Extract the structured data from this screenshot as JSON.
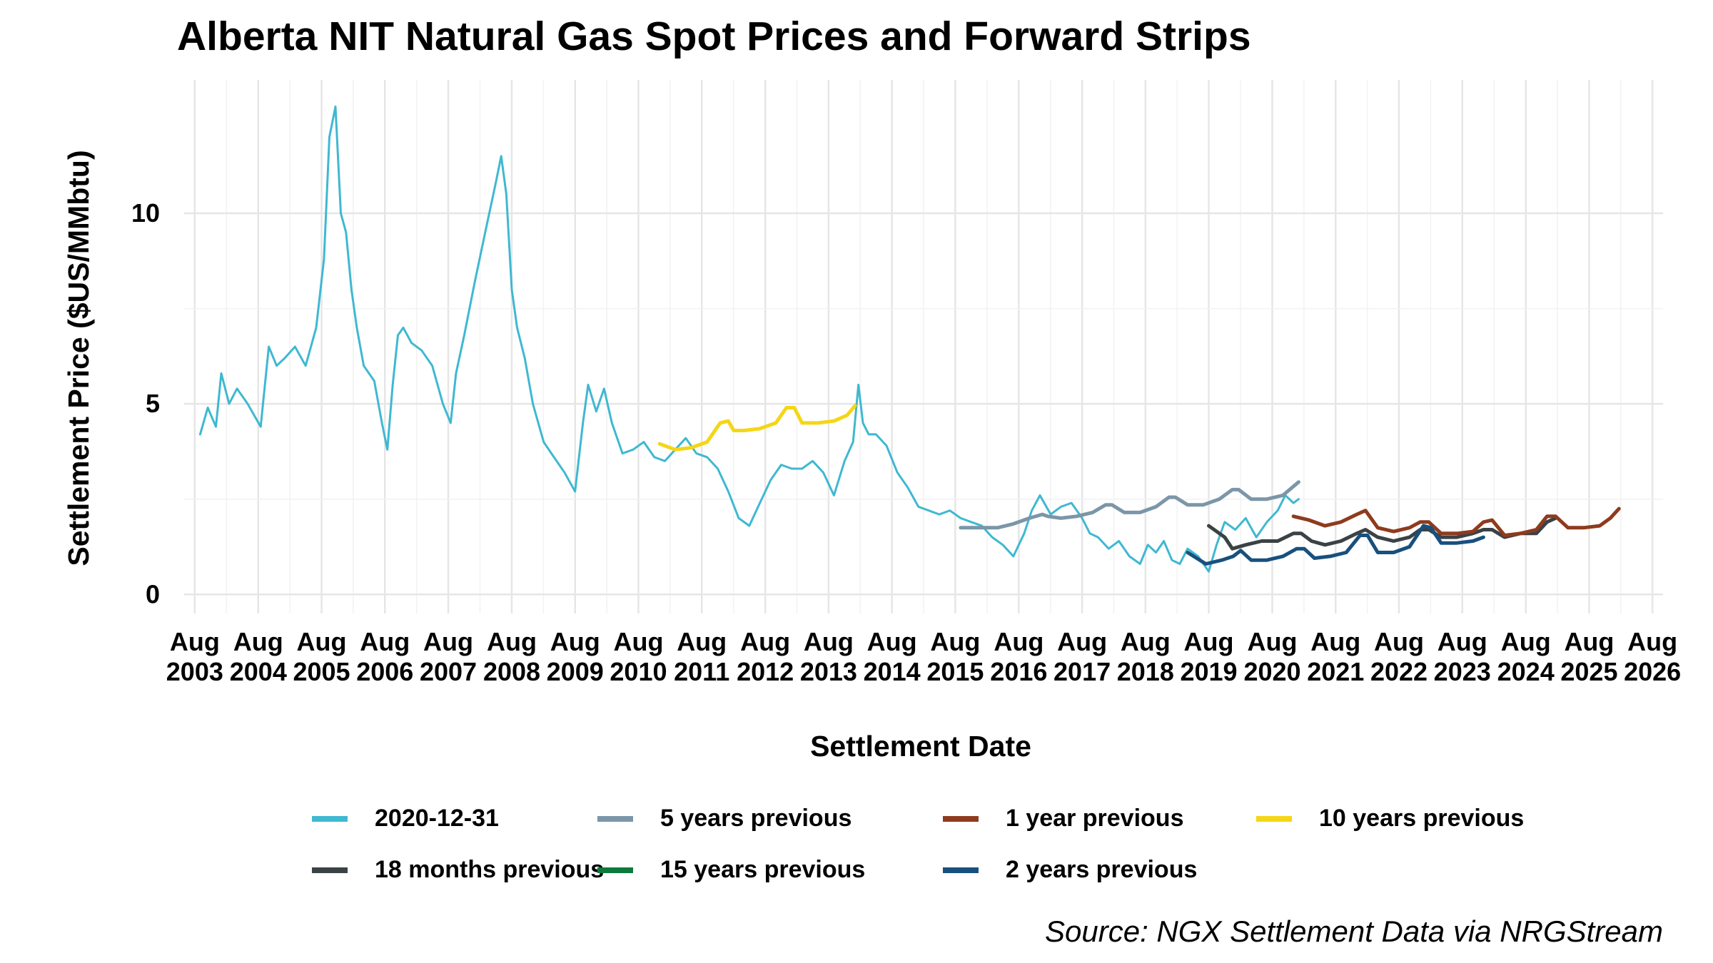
{
  "chart_data": {
    "type": "line",
    "title": "Alberta NIT Natural Gas Spot Prices and Forward Strips",
    "xlabel": "Settlement Date",
    "ylabel": "Settlement Price ($US/MMbtu)",
    "source": "Source: NGX Settlement Data via NRGStream",
    "xlim": [
      "2003-06-01",
      "2026-10-01"
    ],
    "ylim": [
      -0.5,
      13.5
    ],
    "grid": true,
    "legend_position": "bottom",
    "x_ticks": [
      {
        "date": "2003-08-01",
        "label": [
          "Aug",
          "2003"
        ]
      },
      {
        "date": "2004-08-01",
        "label": [
          "Aug",
          "2004"
        ]
      },
      {
        "date": "2005-08-01",
        "label": [
          "Aug",
          "2005"
        ]
      },
      {
        "date": "2006-08-01",
        "label": [
          "Aug",
          "2006"
        ]
      },
      {
        "date": "2007-08-01",
        "label": [
          "Aug",
          "2007"
        ]
      },
      {
        "date": "2008-08-01",
        "label": [
          "Aug",
          "2008"
        ]
      },
      {
        "date": "2009-08-01",
        "label": [
          "Aug",
          "2009"
        ]
      },
      {
        "date": "2010-08-01",
        "label": [
          "Aug",
          "2010"
        ]
      },
      {
        "date": "2011-08-01",
        "label": [
          "Aug",
          "2011"
        ]
      },
      {
        "date": "2012-08-01",
        "label": [
          "Aug",
          "2012"
        ]
      },
      {
        "date": "2013-08-01",
        "label": [
          "Aug",
          "2013"
        ]
      },
      {
        "date": "2014-08-01",
        "label": [
          "Aug",
          "2014"
        ]
      },
      {
        "date": "2015-08-01",
        "label": [
          "Aug",
          "2015"
        ]
      },
      {
        "date": "2016-08-01",
        "label": [
          "Aug",
          "2016"
        ]
      },
      {
        "date": "2017-08-01",
        "label": [
          "Aug",
          "2017"
        ]
      },
      {
        "date": "2018-08-01",
        "label": [
          "Aug",
          "2018"
        ]
      },
      {
        "date": "2019-08-01",
        "label": [
          "Aug",
          "2019"
        ]
      },
      {
        "date": "2020-08-01",
        "label": [
          "Aug",
          "2020"
        ]
      },
      {
        "date": "2021-08-01",
        "label": [
          "Aug",
          "2021"
        ]
      },
      {
        "date": "2022-08-01",
        "label": [
          "Aug",
          "2022"
        ]
      },
      {
        "date": "2023-08-01",
        "label": [
          "Aug",
          "2023"
        ]
      },
      {
        "date": "2024-08-01",
        "label": [
          "Aug",
          "2024"
        ]
      },
      {
        "date": "2025-08-01",
        "label": [
          "Aug",
          "2025"
        ]
      },
      {
        "date": "2026-08-01",
        "label": [
          "Aug",
          "2026"
        ]
      }
    ],
    "y_ticks": [
      0,
      5,
      10
    ],
    "series": [
      {
        "name": "2020-12-31",
        "color": "#3FB8D1",
        "width": 3,
        "x": [
          "2003-09-01",
          "2003-10-15",
          "2003-12-01",
          "2004-01-01",
          "2004-02-15",
          "2004-04-01",
          "2004-06-01",
          "2004-08-15",
          "2004-10-01",
          "2004-11-15",
          "2005-01-01",
          "2005-03-01",
          "2005-05-01",
          "2005-07-01",
          "2005-08-15",
          "2005-09-15",
          "2005-10-20",
          "2005-11-20",
          "2005-12-20",
          "2006-01-20",
          "2006-02-20",
          "2006-04-01",
          "2006-06-01",
          "2006-07-15",
          "2006-08-15",
          "2006-09-15",
          "2006-10-15",
          "2006-11-15",
          "2007-01-01",
          "2007-03-01",
          "2007-05-01",
          "2007-07-01",
          "2007-08-15",
          "2007-09-15",
          "2007-11-01",
          "2008-01-01",
          "2008-03-01",
          "2008-05-01",
          "2008-06-01",
          "2008-07-01",
          "2008-08-01",
          "2008-09-01",
          "2008-10-15",
          "2008-12-01",
          "2009-02-01",
          "2009-04-01",
          "2009-06-01",
          "2009-08-01",
          "2009-09-15",
          "2009-10-15",
          "2009-12-01",
          "2010-01-15",
          "2010-03-01",
          "2010-05-01",
          "2010-07-01",
          "2010-09-01",
          "2010-11-01",
          "2011-01-01",
          "2011-03-01",
          "2011-05-01",
          "2011-07-01",
          "2011-09-01",
          "2011-11-01",
          "2012-01-01",
          "2012-03-01",
          "2012-05-01",
          "2012-07-01",
          "2012-09-01",
          "2012-11-01",
          "2013-01-01",
          "2013-03-01",
          "2013-05-01",
          "2013-07-01",
          "2013-09-01",
          "2013-11-01",
          "2013-12-20",
          "2014-01-20",
          "2014-02-15",
          "2014-03-20",
          "2014-05-01",
          "2014-07-01",
          "2014-09-01",
          "2014-11-01",
          "2015-01-01",
          "2015-03-01",
          "2015-05-01",
          "2015-07-01",
          "2015-09-01",
          "2015-11-01",
          "2016-01-01",
          "2016-03-01",
          "2016-05-01",
          "2016-07-01",
          "2016-09-01",
          "2016-10-15",
          "2016-12-01",
          "2017-02-01",
          "2017-04-01",
          "2017-06-01",
          "2017-08-01",
          "2017-09-15",
          "2017-11-01",
          "2018-01-01",
          "2018-03-01",
          "2018-05-01",
          "2018-07-01",
          "2018-08-15",
          "2018-10-01",
          "2018-11-15",
          "2019-01-01",
          "2019-02-15",
          "2019-04-01",
          "2019-06-01",
          "2019-08-01",
          "2019-09-15",
          "2019-11-01",
          "2020-01-01",
          "2020-03-01",
          "2020-05-01",
          "2020-07-01",
          "2020-09-01",
          "2020-10-15",
          "2020-12-01",
          "2020-12-31"
        ],
        "y": [
          4.2,
          4.9,
          4.4,
          5.8,
          5.0,
          5.4,
          5.0,
          4.4,
          6.5,
          6.0,
          6.2,
          6.5,
          6.0,
          7.0,
          8.8,
          12.0,
          12.8,
          10.0,
          9.5,
          8.0,
          7.0,
          6.0,
          5.6,
          4.5,
          3.8,
          5.5,
          6.8,
          7.0,
          6.6,
          6.4,
          6.0,
          5.0,
          4.5,
          5.8,
          6.8,
          8.2,
          9.5,
          10.8,
          11.5,
          10.5,
          8.0,
          7.0,
          6.2,
          5.0,
          4.0,
          3.6,
          3.2,
          2.7,
          4.5,
          5.5,
          4.8,
          5.4,
          4.5,
          3.7,
          3.8,
          4.0,
          3.6,
          3.5,
          3.8,
          4.1,
          3.7,
          3.6,
          3.3,
          2.7,
          2.0,
          1.8,
          2.4,
          3.0,
          3.4,
          3.3,
          3.3,
          3.5,
          3.2,
          2.6,
          3.5,
          4.0,
          5.5,
          4.5,
          4.2,
          4.2,
          3.9,
          3.2,
          2.8,
          2.3,
          2.2,
          2.1,
          2.2,
          2.0,
          1.9,
          1.8,
          1.5,
          1.3,
          1.0,
          1.6,
          2.2,
          2.6,
          2.1,
          2.3,
          2.4,
          2.0,
          1.6,
          1.5,
          1.2,
          1.4,
          1.0,
          0.8,
          1.3,
          1.1,
          1.4,
          0.9,
          0.8,
          1.2,
          1.0,
          0.6,
          1.3,
          1.9,
          1.7,
          2.0,
          1.5,
          1.9,
          2.2,
          2.6,
          2.4,
          2.5
        ]
      },
      {
        "name": "18 months previous",
        "color": "#3A4245",
        "width": 5,
        "x": [
          "2019-08-01",
          "2019-11-01",
          "2019-12-15",
          "2020-03-01",
          "2020-06-01",
          "2020-09-01",
          "2020-12-01",
          "2021-01-15",
          "2021-03-15",
          "2021-06-01",
          "2021-09-01",
          "2021-12-01",
          "2022-01-20",
          "2022-04-01",
          "2022-07-01",
          "2022-10-01",
          "2022-12-01",
          "2023-01-20",
          "2023-04-01",
          "2023-07-01",
          "2023-10-01",
          "2023-12-01",
          "2024-01-20",
          "2024-04-01",
          "2024-07-01",
          "2024-10-01",
          "2024-12-01",
          "2025-01-20"
        ],
        "y": [
          1.8,
          1.5,
          1.2,
          1.3,
          1.4,
          1.4,
          1.6,
          1.6,
          1.4,
          1.3,
          1.4,
          1.6,
          1.7,
          1.5,
          1.4,
          1.5,
          1.7,
          1.7,
          1.5,
          1.5,
          1.6,
          1.7,
          1.7,
          1.5,
          1.6,
          1.6,
          1.9,
          2.0
        ]
      },
      {
        "name": "5 years previous",
        "color": "#7B96A8",
        "width": 5,
        "x": [
          "2015-09-01",
          "2016-01-01",
          "2016-04-01",
          "2016-07-01",
          "2016-10-01",
          "2016-12-15",
          "2017-01-15",
          "2017-04-01",
          "2017-07-01",
          "2017-10-01",
          "2017-12-15",
          "2018-01-20",
          "2018-04-01",
          "2018-07-01",
          "2018-10-01",
          "2018-12-15",
          "2019-01-20",
          "2019-04-01",
          "2019-07-01",
          "2019-10-01",
          "2019-12-15",
          "2020-01-20",
          "2020-04-01",
          "2020-07-01",
          "2020-10-01",
          "2020-12-31"
        ],
        "y": [
          1.75,
          1.75,
          1.75,
          1.85,
          2.0,
          2.1,
          2.05,
          2.0,
          2.05,
          2.15,
          2.35,
          2.35,
          2.15,
          2.15,
          2.3,
          2.55,
          2.55,
          2.35,
          2.35,
          2.5,
          2.75,
          2.75,
          2.5,
          2.5,
          2.6,
          2.95
        ]
      },
      {
        "name": "15 years previous",
        "color": "#0D7A3D",
        "width": 5,
        "x": [],
        "y": []
      },
      {
        "name": "1 year previous",
        "color": "#8E3B1E",
        "width": 5,
        "x": [
          "2020-12-01",
          "2021-03-01",
          "2021-06-01",
          "2021-09-01",
          "2021-12-01",
          "2022-01-20",
          "2022-04-01",
          "2022-07-01",
          "2022-10-01",
          "2022-12-01",
          "2023-01-20",
          "2023-04-01",
          "2023-07-01",
          "2023-10-01",
          "2023-12-01",
          "2024-01-20",
          "2024-04-01",
          "2024-07-01",
          "2024-10-01",
          "2024-12-01",
          "2025-01-20",
          "2025-04-01",
          "2025-07-01",
          "2025-10-01",
          "2025-12-01",
          "2026-01-20"
        ],
        "y": [
          2.05,
          1.95,
          1.8,
          1.9,
          2.1,
          2.2,
          1.75,
          1.65,
          1.75,
          1.9,
          1.9,
          1.6,
          1.6,
          1.65,
          1.9,
          1.95,
          1.55,
          1.6,
          1.7,
          2.05,
          2.05,
          1.75,
          1.75,
          1.8,
          2.0,
          2.25
        ]
      },
      {
        "name": "2 years previous",
        "color": "#18507E",
        "width": 5,
        "x": [
          "2019-04-01",
          "2019-07-15",
          "2019-10-15",
          "2019-12-20",
          "2020-02-01",
          "2020-04-01",
          "2020-07-01",
          "2020-10-01",
          "2020-12-20",
          "2021-02-01",
          "2021-04-01",
          "2021-07-01",
          "2021-10-01",
          "2021-12-20",
          "2022-02-01",
          "2022-04-01",
          "2022-07-01",
          "2022-10-01",
          "2022-12-20",
          "2023-02-01",
          "2023-04-01",
          "2023-07-01",
          "2023-10-01",
          "2023-12-01"
        ],
        "y": [
          1.1,
          0.8,
          0.9,
          1.0,
          1.15,
          0.9,
          0.9,
          1.0,
          1.2,
          1.2,
          0.95,
          1.0,
          1.1,
          1.55,
          1.55,
          1.1,
          1.1,
          1.25,
          1.8,
          1.75,
          1.35,
          1.35,
          1.4,
          1.5
        ]
      },
      {
        "name": "10 years previous",
        "color": "#F5D616",
        "width": 5,
        "x": [
          "2010-12-01",
          "2011-03-01",
          "2011-06-01",
          "2011-09-01",
          "2011-11-15",
          "2012-01-01",
          "2012-02-01",
          "2012-04-01",
          "2012-07-01",
          "2012-10-01",
          "2012-12-01",
          "2013-01-15",
          "2013-03-01",
          "2013-06-01",
          "2013-09-01",
          "2013-11-15",
          "2013-12-31"
        ],
        "y": [
          3.95,
          3.8,
          3.85,
          4.0,
          4.5,
          4.55,
          4.3,
          4.3,
          4.35,
          4.5,
          4.9,
          4.9,
          4.5,
          4.5,
          4.55,
          4.7,
          4.95
        ]
      }
    ]
  },
  "legend": {
    "items": [
      {
        "label": "2020-12-31",
        "color": "#3FB8D1"
      },
      {
        "label": "18 months previous",
        "color": "#3A4245"
      },
      {
        "label": "5 years previous",
        "color": "#7B96A8"
      },
      {
        "label": "15 years previous",
        "color": "#0D7A3D"
      },
      {
        "label": "1 year previous",
        "color": "#8E3B1E"
      },
      {
        "label": "2 years previous",
        "color": "#18507E"
      },
      {
        "label": "10 years previous",
        "color": "#F5D616"
      }
    ]
  }
}
